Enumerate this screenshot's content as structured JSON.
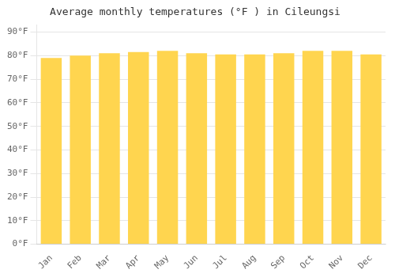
{
  "chart_data": {
    "type": "bar",
    "title": "Average monthly temperatures (°F ) in Cileungsi",
    "categories": [
      "Jan",
      "Feb",
      "Mar",
      "Apr",
      "May",
      "Jun",
      "Jul",
      "Aug",
      "Sep",
      "Oct",
      "Nov",
      "Dec"
    ],
    "values": [
      79.0,
      80.0,
      81.0,
      81.5,
      82.0,
      81.0,
      80.5,
      80.5,
      81.0,
      82.0,
      82.0,
      80.5
    ],
    "color": "#FFD54F",
    "ylim": [
      0,
      93
    ],
    "yticks": [
      {
        "value": 0,
        "label": "0°F"
      },
      {
        "value": 10,
        "label": "10°F"
      },
      {
        "value": 20,
        "label": "20°F"
      },
      {
        "value": 30,
        "label": "30°F"
      },
      {
        "value": 40,
        "label": "40°F"
      },
      {
        "value": 50,
        "label": "50°F"
      },
      {
        "value": 60,
        "label": "60°F"
      },
      {
        "value": 70,
        "label": "70°F"
      },
      {
        "value": 80,
        "label": "80°F"
      },
      {
        "value": 90,
        "label": "90°F"
      }
    ],
    "grid": true
  }
}
